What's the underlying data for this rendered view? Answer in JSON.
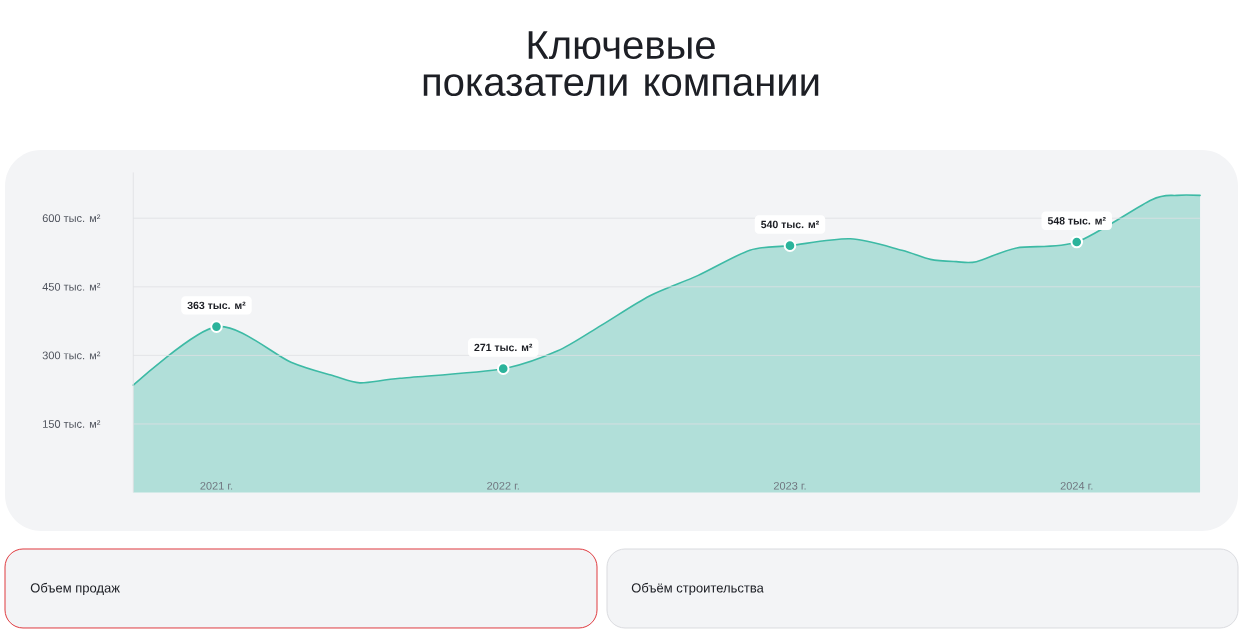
{
  "chart_data": {
    "type": "area",
    "title": "Ключевые показатели компании",
    "annotations": [
      "Объем продаж",
      "Объём строительства"
    ],
    "series": [
      {
        "color": "#3dbaa5",
        "x": [
          2020.71,
          2021,
          2021.26,
          2021.41,
          2021.5,
          2021.64,
          2022,
          2022.19,
          2022.34,
          2022.51,
          2022.68,
          2022.86,
          2023,
          2023.21,
          2023.39,
          2023.49,
          2023.58,
          2023.65,
          2023.79,
          2024,
          2024.26,
          2024.35,
          2024.43
        ],
        "values": [
          235,
          363,
          285,
          255,
          240,
          250,
          271,
          310,
          365,
          430,
          475,
          530,
          540,
          555,
          530,
          510,
          505,
          505,
          535,
          548,
          640,
          650,
          650
        ]
      },
      {
        "type": "scatter",
        "color": "#2bb39b",
        "marker": "circle",
        "x": [
          2021,
          2022,
          2023,
          2024
        ],
        "values": [
          363,
          271,
          540,
          548
        ],
        "value_labels": [
          "363 тыс. м²",
          "271 тыс. м²",
          "540 тыс. м²",
          "548 тыс. м²"
        ]
      }
    ],
    "xlim": [
      2020.71,
      2024.43
    ],
    "xticks": [
      {
        "value": 2021,
        "label": "2021 г."
      },
      {
        "value": 2022,
        "label": "2022 г."
      },
      {
        "value": 2023,
        "label": "2023 г."
      },
      {
        "value": 2024,
        "label": "2024 г."
      }
    ],
    "ylim": [
      0,
      700
    ],
    "yticks": [
      {
        "value": 150,
        "label": "150 тыс. м²"
      },
      {
        "value": 300,
        "label": "300 тыс. м²"
      },
      {
        "value": 450,
        "label": "450 тыс. м²"
      },
      {
        "value": 600,
        "label": "600 тыс. м²"
      }
    ],
    "grid": "y"
  }
}
